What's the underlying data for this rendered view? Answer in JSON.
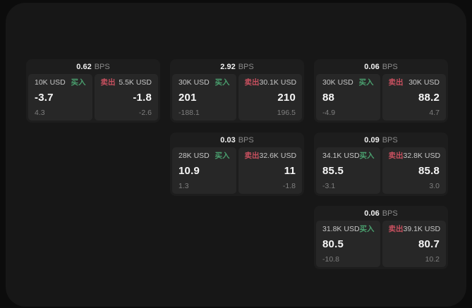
{
  "labels": {
    "bps_unit": "BPS",
    "buy": "买入",
    "sell": "卖出"
  },
  "colors": {
    "page_bg": "#0c0c0c",
    "window_bg": "#171717",
    "card_bg": "#1d1d1d",
    "panel_bg": "#272727",
    "buy_accent": "#4a9f6e",
    "sell_accent": "#c7505f"
  },
  "cards": [
    {
      "bps": "0.62",
      "buy": {
        "size": "10K USD",
        "value": "-3.7",
        "sub": "4.3"
      },
      "sell": {
        "size": "5.5K USD",
        "value": "-1.8",
        "sub": "-2.6"
      }
    },
    {
      "bps": "2.92",
      "buy": {
        "size": "30K USD",
        "value": "201",
        "sub": "-188.1"
      },
      "sell": {
        "size": "30.1K USD",
        "value": "210",
        "sub": "196.5"
      }
    },
    {
      "bps": "0.06",
      "buy": {
        "size": "30K USD",
        "value": "88",
        "sub": "-4.9"
      },
      "sell": {
        "size": "30K USD",
        "value": "88.2",
        "sub": "4.7"
      }
    },
    {
      "bps": "0.03",
      "buy": {
        "size": "28K USD",
        "value": "10.9",
        "sub": "1.3"
      },
      "sell": {
        "size": "32.6K USD",
        "value": "11",
        "sub": "-1.8"
      }
    },
    {
      "bps": "0.09",
      "buy": {
        "size": "34.1K USD",
        "value": "85.5",
        "sub": "-3.1"
      },
      "sell": {
        "size": "32.8K USD",
        "value": "85.8",
        "sub": "3.0"
      }
    },
    {
      "bps": "0.06",
      "buy": {
        "size": "31.8K USD",
        "value": "80.5",
        "sub": "-10.8"
      },
      "sell": {
        "size": "39.1K USD",
        "value": "80.7",
        "sub": "10.2"
      }
    }
  ]
}
